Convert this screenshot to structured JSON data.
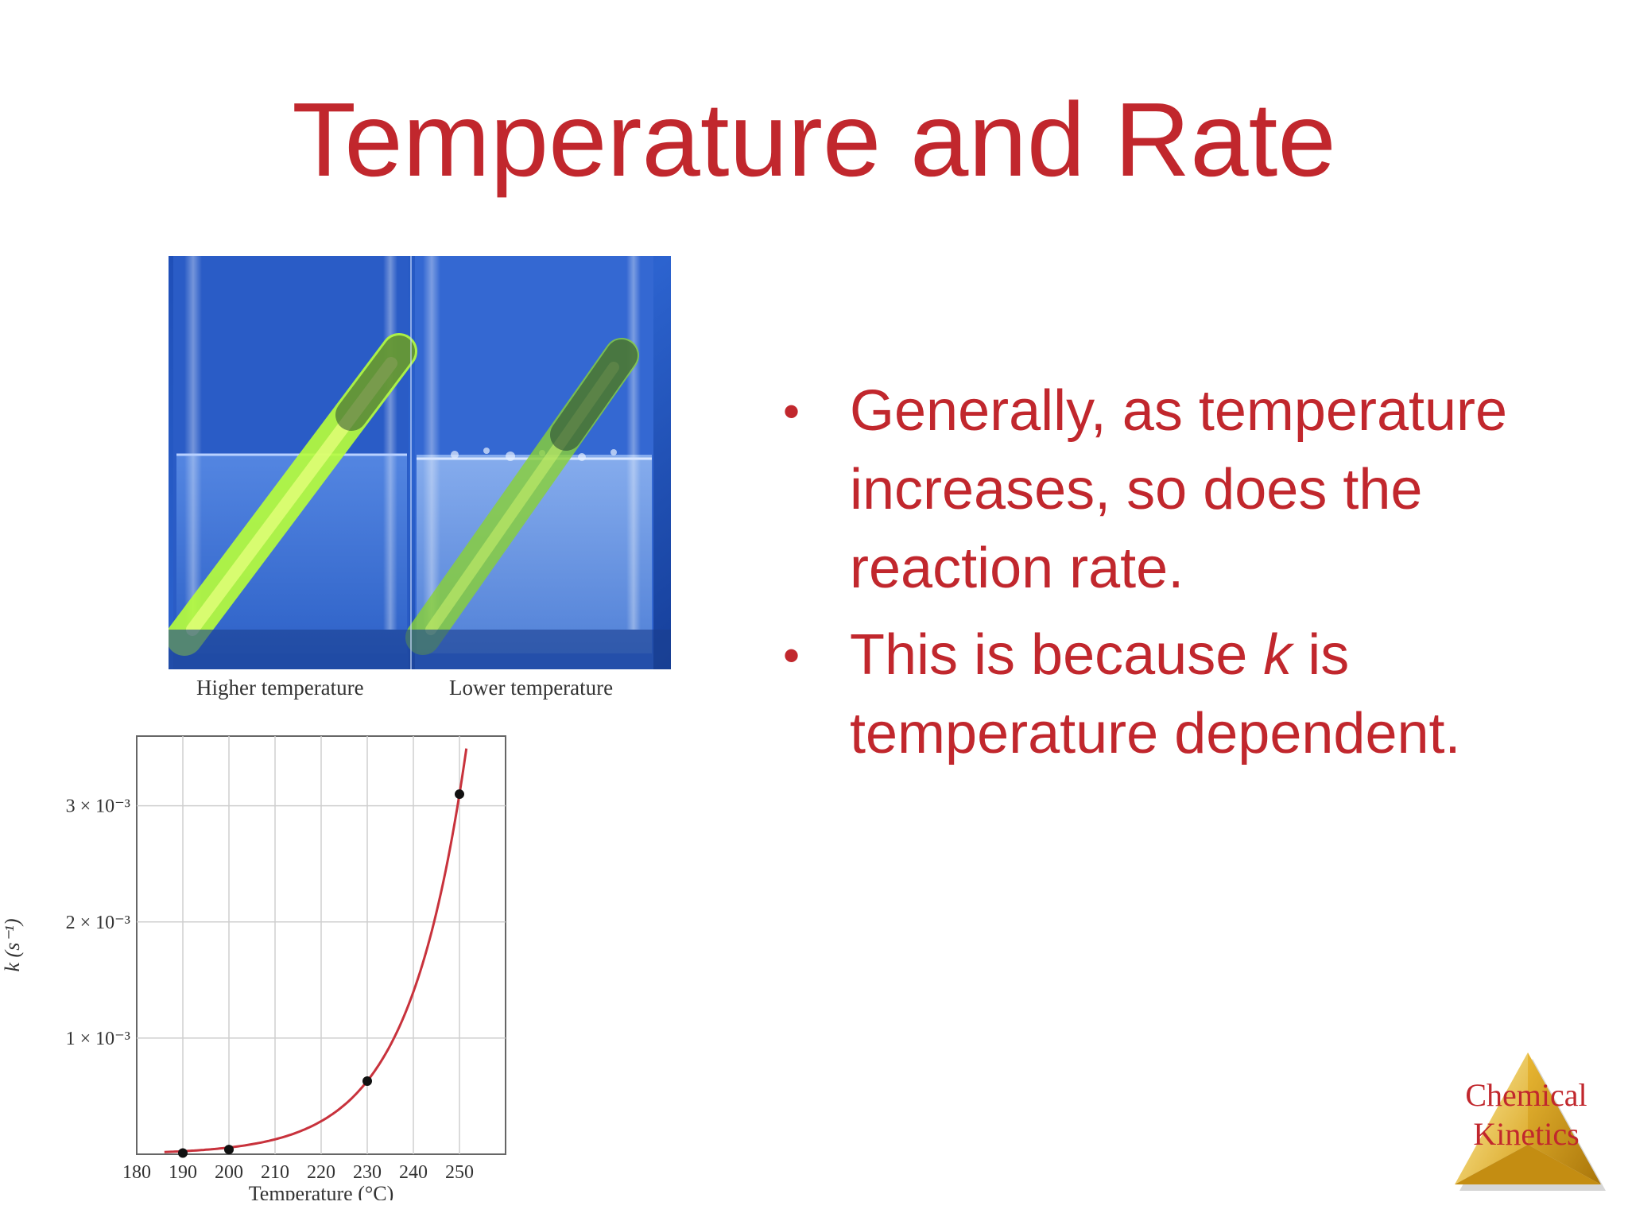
{
  "slide": {
    "title": "Temperature and Rate",
    "bullets": [
      {
        "before": "Generally, as temperature increases, so does the reaction rate.",
        "var": "",
        "after": ""
      },
      {
        "before": "This is because ",
        "var": "k",
        "after": " is temperature dependent."
      }
    ],
    "bullet_symbol": "•",
    "title_color": "#c1272d"
  },
  "photo": {
    "caption_left": "Higher temperature",
    "caption_right": "Lower temperature"
  },
  "logo": {
    "line1": "Chemical",
    "line2": "Kinetics",
    "icon": "gold-pyramid-icon"
  },
  "chart_data": {
    "type": "line",
    "xlabel": "Temperature (°C)",
    "ylabel": "k (s⁻¹)",
    "xlim": [
      180,
      260
    ],
    "ylim": [
      0,
      0.0036
    ],
    "xticks": [
      180,
      190,
      200,
      210,
      220,
      230,
      240,
      250
    ],
    "yticks": [
      {
        "value": 0.001,
        "label": "1 × 10⁻³"
      },
      {
        "value": 0.002,
        "label": "2 × 10⁻³"
      },
      {
        "value": 0.003,
        "label": "3 × 10⁻³"
      }
    ],
    "points": [
      {
        "x": 190,
        "y": 1e-05
      },
      {
        "x": 200,
        "y": 4e-05
      },
      {
        "x": 230,
        "y": 0.00063
      },
      {
        "x": 250,
        "y": 0.0031
      }
    ],
    "curve_color": "#c8323c",
    "grid": true
  }
}
